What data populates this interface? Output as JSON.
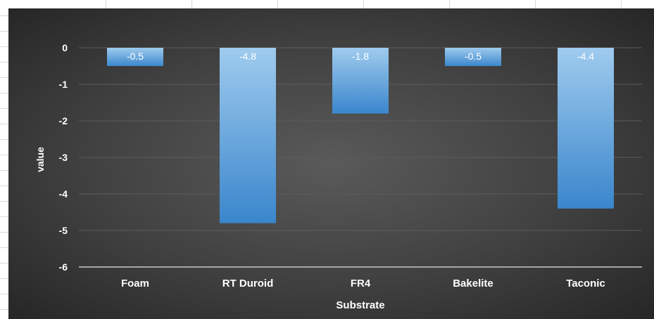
{
  "chart_data": {
    "type": "bar",
    "categories": [
      "Foam",
      "RT Duroid",
      "FR4",
      "Bakelite",
      "Taconic"
    ],
    "values": [
      -0.5,
      -4.8,
      -1.8,
      -0.5,
      -4.4
    ],
    "data_labels": [
      "-0.5",
      "-4.8",
      "-1.8",
      "-0.5",
      "-4.4"
    ],
    "title": "",
    "xlabel": "Substrate",
    "ylabel": "value",
    "ylim": [
      -6,
      0
    ],
    "yticks": [
      0,
      -1,
      -2,
      -3,
      -4,
      -5,
      -6
    ],
    "ytick_labels": [
      "0",
      "-1",
      "-2",
      "-3",
      "-4",
      "-5",
      "-6"
    ],
    "grid": true,
    "legend": "none",
    "colors": {
      "bar_top": "#9fcbee",
      "bar_bottom": "#3a86cc",
      "background": "#404040",
      "gridline": "#5c5c5c",
      "axis_line": "#a6a6a6",
      "text": "#ffffff"
    }
  }
}
